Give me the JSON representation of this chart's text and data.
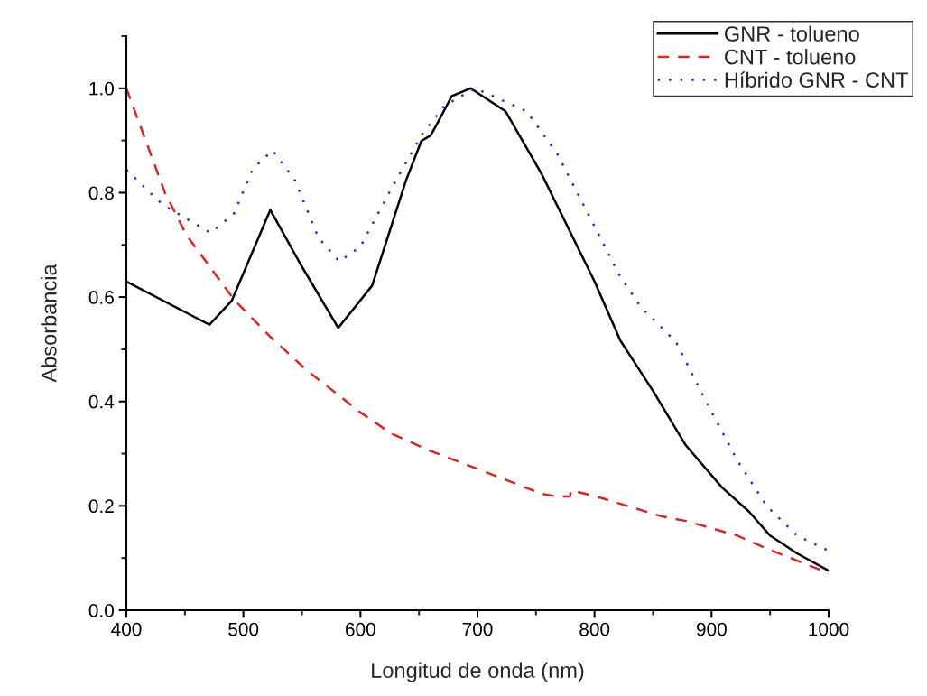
{
  "chart_data": {
    "type": "line",
    "xlabel": "Longitud de onda (nm)",
    "ylabel": "Absorbancia",
    "xlim": [
      400,
      1000
    ],
    "xticks": [
      400,
      500,
      600,
      700,
      800,
      900,
      1000
    ],
    "ylim": [
      0,
      1.1
    ],
    "yticks": [
      {
        "value": 0,
        "label": "0.0"
      },
      {
        "value": 0.2,
        "label": "0.2"
      },
      {
        "value": 0.4,
        "label": "0.4"
      },
      {
        "value": 0.6,
        "label": "0.6"
      },
      {
        "value": 0.8,
        "label": "0.8"
      },
      {
        "value": 1.0,
        "label": "1.0"
      }
    ],
    "grid": false,
    "legend": "top right",
    "marker": "none",
    "series": [
      {
        "name": "GNR - tolueno",
        "color": "#000000",
        "line_style": "solid",
        "x": [
          400,
          471,
          490,
          523,
          549,
          581,
          610,
          639,
          652,
          660,
          665,
          678,
          694,
          724,
          755,
          800,
          822,
          850,
          878,
          909,
          932,
          950,
          973,
          1000
        ],
        "values": [
          0.63,
          0.547,
          0.593,
          0.767,
          0.662,
          0.541,
          0.622,
          0.824,
          0.899,
          0.91,
          0.93,
          0.985,
          1.0,
          0.956,
          0.835,
          0.63,
          0.517,
          0.42,
          0.316,
          0.235,
          0.189,
          0.143,
          0.109,
          0.076
        ]
      },
      {
        "name": "CNT - tolueno",
        "color": "#d62728",
        "line_style": "dashed",
        "x": [
          400,
          433,
          451,
          492,
          523,
          554,
          600,
          626,
          660,
          701,
          755,
          768,
          779,
          780,
          806,
          857,
          878,
          922,
          945,
          1000
        ],
        "values": [
          1.0,
          0.8,
          0.72,
          0.595,
          0.524,
          0.46,
          0.379,
          0.339,
          0.305,
          0.27,
          0.223,
          0.218,
          0.218,
          0.23,
          0.215,
          0.18,
          0.171,
          0.143,
          0.12,
          0.071
        ]
      },
      {
        "name": "Híbrido GNR - CNT",
        "color": "#2b2bd0",
        "line_style": "dotted",
        "x": [
          400,
          431,
          472,
          492,
          508,
          525,
          544,
          564,
          582,
          600,
          626,
          652,
          672,
          698,
          742,
          768,
          793,
          822,
          840,
          863,
          870,
          896,
          922,
          947,
          973,
          1000
        ],
        "values": [
          0.844,
          0.777,
          0.723,
          0.76,
          0.846,
          0.881,
          0.824,
          0.714,
          0.668,
          0.697,
          0.806,
          0.91,
          0.967,
          1.0,
          0.956,
          0.875,
          0.766,
          0.639,
          0.58,
          0.529,
          0.512,
          0.397,
          0.287,
          0.2,
          0.143,
          0.114
        ]
      }
    ]
  }
}
